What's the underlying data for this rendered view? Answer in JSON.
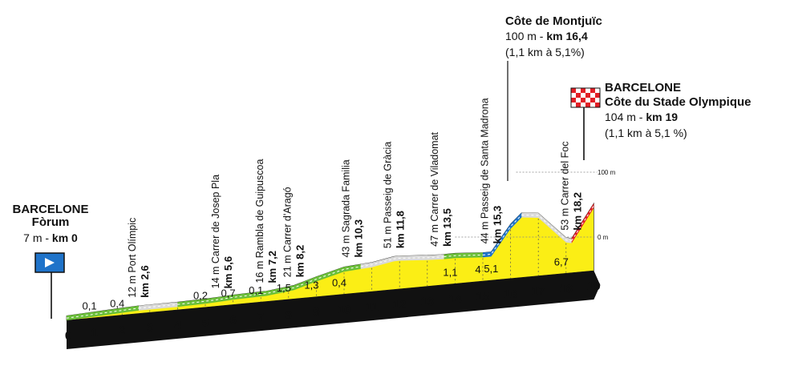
{
  "start": {
    "city": "BARCELONE",
    "place": "Fòrum",
    "info_plain": "7 m - ",
    "info_bold": "km 0"
  },
  "finish": {
    "city": "BARCELONE",
    "place": "Côte du Stade Olympique",
    "info_plain": "104 m - ",
    "info_bold": "km 19",
    "climb": "(1,1 km à 5,1 %)"
  },
  "montjuic": {
    "name": "Côte de Montjuïc",
    "info_plain": "100 m - ",
    "info_bold": "km 16,4",
    "climb": "(1,1 km à 5,1%)"
  },
  "scale": {
    "top_label": "100 m",
    "bottom_label": "0 m"
  },
  "waypoints": [
    {
      "alt_label": "12 m Port Olímpic",
      "km_label": "km 2,6"
    },
    {
      "alt_label": "14 m Carrer de Josep Pla",
      "km_label": "km 5,6"
    },
    {
      "alt_label": "16 m Rambla de Guipuscoa",
      "km_label": "km 7,2"
    },
    {
      "alt_label": "21 m Carrer d'Aragó",
      "km_label": "km 8,2"
    },
    {
      "alt_label": "43 m Sagrada Familia",
      "km_label": "km 10,3"
    },
    {
      "alt_label": "51 m Passeig de Gràcia",
      "km_label": "km 11,8"
    },
    {
      "alt_label": "47 m Carrer de Viladomat",
      "km_label": "km 13,5"
    },
    {
      "alt_label": "44 m Passeig de Santa Madrona",
      "km_label": "km 15,3"
    },
    {
      "alt_label": "53 m Carrer del Foc",
      "km_label": "km 18,2"
    }
  ],
  "chart_data": {
    "type": "area",
    "xlabel": "",
    "ylabel": "",
    "x_unit": "km",
    "y_unit": "m",
    "xlim": [
      0,
      19
    ],
    "ylim": [
      0,
      100
    ],
    "x_ticks": [
      "0",
      "1",
      "2",
      "3",
      "4",
      "5",
      "6",
      "7",
      "8",
      "9",
      "10",
      "11",
      "12",
      "13",
      "14",
      "15",
      "16",
      "17",
      "18",
      "19"
    ],
    "series": [
      {
        "x": [
          0,
          1,
          2,
          2.6,
          3,
          4,
          5,
          5.6,
          6,
          7,
          7.2,
          8,
          8.2,
          9,
          10,
          10.3,
          11,
          11.8,
          12,
          13,
          13.5,
          14,
          15,
          15.3,
          16,
          16.4,
          17,
          18,
          18.2,
          19
        ],
        "y": [
          7,
          9,
          11,
          12,
          12,
          12,
          13,
          14,
          15,
          16,
          16,
          20,
          21,
          31,
          42,
          43,
          45,
          51,
          51,
          48,
          47,
          47,
          44,
          44,
          84,
          100,
          97,
          55,
          53,
          104
        ]
      }
    ],
    "segments": [
      {
        "from": 0,
        "to": 2.6,
        "kind": "gentle-climb",
        "color": "#6bbf3a"
      },
      {
        "from": 2.6,
        "to": 4,
        "kind": "flat",
        "color": "#d9d9d9"
      },
      {
        "from": 4,
        "to": 10.6,
        "kind": "climb",
        "color": "#6bbf3a"
      },
      {
        "from": 10.6,
        "to": 13.6,
        "kind": "flat",
        "color": "#d9d9d9"
      },
      {
        "from": 13.6,
        "to": 15,
        "kind": "climb",
        "color": "#6bbf3a"
      },
      {
        "from": 15,
        "to": 16.4,
        "kind": "categorized-climb",
        "color": "#1f73c9"
      },
      {
        "from": 16.4,
        "to": 18.2,
        "kind": "descent",
        "color": "#d9d9d9"
      },
      {
        "from": 18.2,
        "to": 19,
        "kind": "final-climb",
        "color": "#e21f26"
      }
    ],
    "gradient_labels": [
      {
        "km": 1,
        "value": "0,1"
      },
      {
        "km": 2,
        "value": "0,4"
      },
      {
        "km": 5,
        "value": "0,2"
      },
      {
        "km": 6,
        "value": "0,7"
      },
      {
        "km": 7,
        "value": "0,1"
      },
      {
        "km": 8,
        "value": "1,5"
      },
      {
        "km": 9,
        "value": "1,3"
      },
      {
        "km": 10,
        "value": "0,4"
      },
      {
        "km": 14,
        "value": "1,1"
      },
      {
        "km": 15,
        "value": "4"
      },
      {
        "km": 15.3,
        "value": "5,1"
      },
      {
        "km": 18,
        "value": "6,7"
      }
    ],
    "colors": {
      "fill": "#fbee15",
      "band": "#111111",
      "climb": "#6bbf3a",
      "flat": "#d9d9d9",
      "categorized": "#1f73c9",
      "finish": "#e21f26",
      "start_flag": "#1f73c9"
    }
  }
}
